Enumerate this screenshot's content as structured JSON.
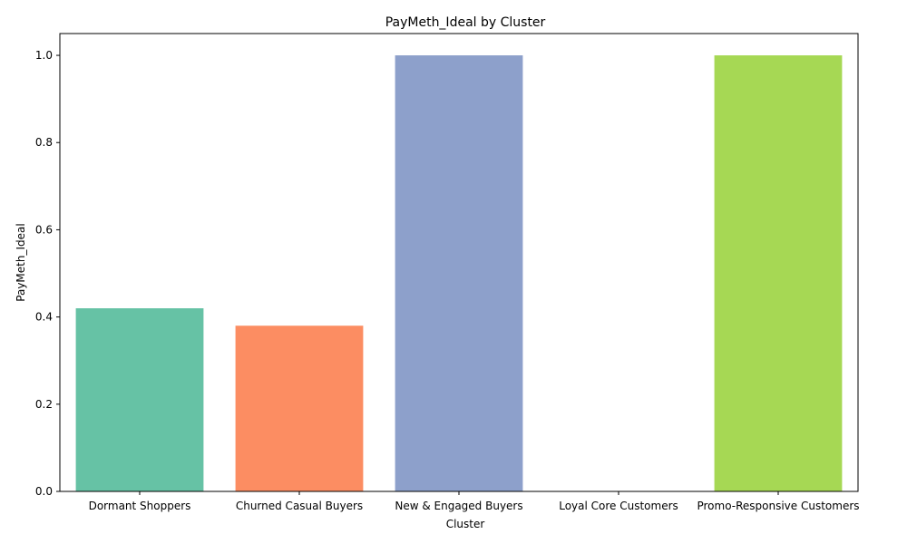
{
  "chart_data": {
    "type": "bar",
    "title": "PayMeth_Ideal by Cluster",
    "xlabel": "Cluster",
    "ylabel": "PayMeth_Ideal",
    "categories": [
      "Dormant Shoppers",
      "Churned Casual Buyers",
      "New & Engaged Buyers",
      "Loyal Core Customers",
      "Promo-Responsive Customers"
    ],
    "values": [
      0.42,
      0.38,
      1.0,
      0.0,
      1.0
    ],
    "colors": [
      "#66c2a5",
      "#fc8d62",
      "#8da0cb",
      "#e78ac3",
      "#a6d854"
    ],
    "ylim": [
      0,
      1.05
    ],
    "yticks": [
      0.0,
      0.2,
      0.4,
      0.6,
      0.8,
      1.0
    ],
    "ytick_labels": [
      "0.0",
      "0.2",
      "0.4",
      "0.6",
      "0.8",
      "1.0"
    ],
    "grid": false,
    "legend": "none"
  }
}
